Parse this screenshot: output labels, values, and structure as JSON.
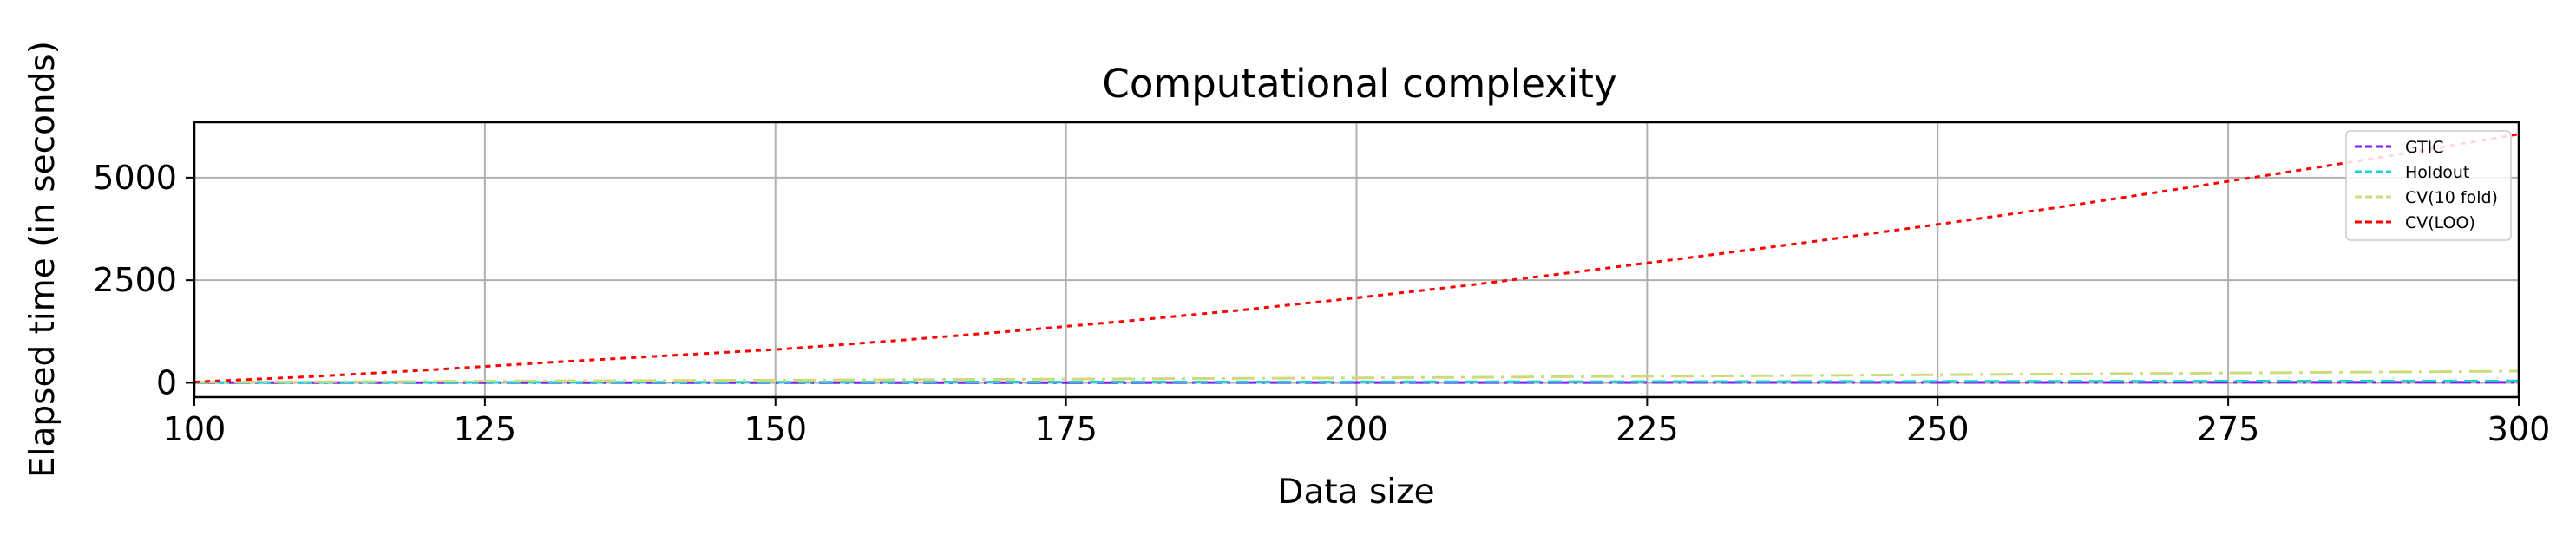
{
  "chart_data": {
    "type": "line",
    "title": "Computational complexity",
    "xlabel": "Data size",
    "ylabel": "Elapsed time (in seconds)",
    "xlim": [
      100,
      300
    ],
    "ylim": [
      -350,
      6350
    ],
    "xticks": [
      100,
      125,
      150,
      175,
      200,
      225,
      250,
      275,
      300
    ],
    "xtick_labels": [
      "100",
      "125",
      "150",
      "175",
      "200",
      "225",
      "250",
      "275",
      "300"
    ],
    "yticks": [
      0,
      2500,
      5000
    ],
    "ytick_labels": [
      "0",
      "2500",
      "5000"
    ],
    "grid": true,
    "legend": "top-right",
    "x": [
      100,
      110,
      120,
      130,
      140,
      150,
      160,
      170,
      180,
      190,
      200,
      210,
      220,
      230,
      240,
      250,
      260,
      270,
      280,
      290,
      300
    ],
    "series": [
      {
        "name": "GTIC",
        "color": "#7b1cf2",
        "dash": "dashdot",
        "values": [
          2,
          2.5,
          3,
          3.5,
          4,
          4.5,
          5,
          5.5,
          6,
          6.5,
          7,
          7.5,
          8,
          8.5,
          9,
          9.5,
          10,
          10.5,
          11,
          11.5,
          12
        ]
      },
      {
        "name": "Holdout",
        "color": "#1ad3d1",
        "dash": "dashed",
        "values": [
          5,
          7,
          9,
          11,
          13,
          15,
          17,
          19,
          21,
          23,
          25,
          27,
          29,
          31,
          33,
          35,
          37,
          39,
          41,
          43,
          45
        ]
      },
      {
        "name": "CV(10 fold)",
        "color": "#cfdb7a",
        "dash": "solid-dashdot",
        "values": [
          15,
          25,
          35,
          45,
          55,
          65,
          75,
          85,
          95,
          108,
          120,
          135,
          150,
          165,
          180,
          195,
          212,
          230,
          248,
          266,
          285
        ]
      },
      {
        "name": "CV(LOO)",
        "color": "#ff0000",
        "dash": "dotted",
        "values": [
          20,
          150,
          310,
          490,
          650,
          810,
          1020,
          1250,
          1500,
          1770,
          2070,
          2390,
          2740,
          3100,
          3470,
          3860,
          4260,
          4690,
          5130,
          5580,
          6060
        ]
      }
    ]
  }
}
